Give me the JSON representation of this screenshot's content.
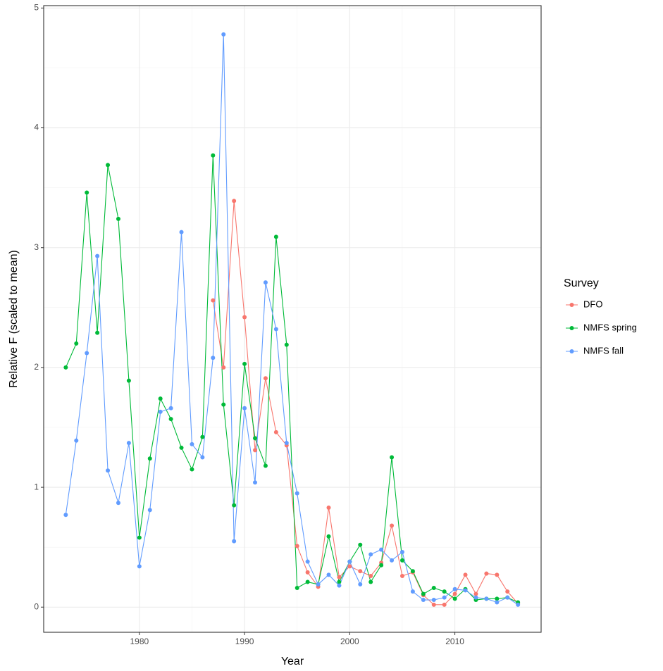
{
  "chart_data": {
    "type": "line",
    "x_label": "Year",
    "y_label": "Relative F (scaled to mean)",
    "legend_title": "Survey",
    "legend_position": "right",
    "x": [
      1973,
      1974,
      1975,
      1976,
      1977,
      1978,
      1979,
      1980,
      1981,
      1982,
      1983,
      1984,
      1985,
      1986,
      1987,
      1988,
      1989,
      1990,
      1991,
      1992,
      1993,
      1994,
      1995,
      1996,
      1997,
      1998,
      1999,
      2000,
      2001,
      2002,
      2003,
      2004,
      2005,
      2006,
      2007,
      2008,
      2009,
      2010,
      2011,
      2012,
      2013,
      2014,
      2015,
      2016
    ],
    "series": [
      {
        "name": "DFO",
        "color": "#F8766D",
        "values": [
          null,
          null,
          null,
          null,
          null,
          null,
          null,
          null,
          null,
          null,
          null,
          null,
          null,
          null,
          2.56,
          2.0,
          3.39,
          2.42,
          1.31,
          1.91,
          1.46,
          1.35,
          0.51,
          0.29,
          0.17,
          0.83,
          0.25,
          0.34,
          0.3,
          0.26,
          0.37,
          0.68,
          0.26,
          0.29,
          0.1,
          0.02,
          0.02,
          0.11,
          0.27,
          0.11,
          0.28,
          0.27,
          0.13,
          0.03
        ]
      },
      {
        "name": "NMFS spring",
        "color": "#00BA38",
        "values": [
          2.0,
          2.2,
          3.46,
          2.29,
          3.69,
          3.24,
          1.89,
          0.58,
          1.24,
          1.74,
          1.57,
          1.33,
          1.15,
          1.42,
          3.77,
          1.69,
          0.85,
          2.03,
          1.41,
          1.18,
          3.09,
          2.19,
          0.16,
          0.21,
          0.19,
          0.59,
          0.21,
          0.38,
          0.52,
          0.21,
          0.35,
          1.25,
          0.39,
          0.3,
          0.11,
          0.16,
          0.13,
          0.07,
          0.15,
          0.06,
          0.07,
          0.07,
          0.08,
          0.04
        ]
      },
      {
        "name": "NMFS fall",
        "color": "#619CFF",
        "values": [
          0.77,
          1.39,
          2.12,
          2.93,
          1.14,
          0.87,
          1.37,
          0.34,
          0.81,
          1.63,
          1.66,
          3.13,
          1.36,
          1.25,
          2.08,
          4.78,
          0.55,
          1.66,
          1.04,
          2.71,
          2.32,
          1.37,
          0.95,
          0.38,
          0.19,
          0.27,
          0.18,
          0.38,
          0.19,
          0.44,
          0.48,
          0.39,
          0.46,
          0.13,
          0.06,
          0.06,
          0.08,
          0.15,
          0.14,
          0.08,
          0.07,
          0.04,
          0.08,
          0.02
        ]
      }
    ],
    "xlim": [
      1970.9,
      2018.2
    ],
    "xticks": [
      1980,
      1990,
      2000,
      2010
    ],
    "ylim": [
      -0.21,
      5.02
    ],
    "yticks": [
      0,
      1,
      2,
      3,
      4,
      5
    ],
    "grid": true
  }
}
